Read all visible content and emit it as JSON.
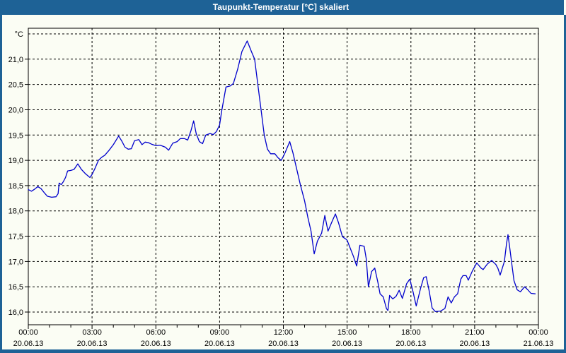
{
  "window": {
    "title": "Taupunkt-Temperatur [°C] skaliert"
  },
  "chart_data": {
    "type": "line",
    "title": "Taupunkt-Temperatur [°C] skaliert",
    "y_unit_label": "°C",
    "ylabel": "",
    "xlabel": "",
    "ylim": [
      15.75,
      21.61
    ],
    "xlim_hours": [
      0,
      24
    ],
    "grid": "dashed",
    "legend": "none",
    "line_color": "#0000CC",
    "grid_color": "#000000",
    "axis_color": "#000000",
    "background_color": "#FBFDF4",
    "titlebar_color": "#1E6296",
    "y_ticks": [
      {
        "value": 16.0,
        "label": "16,0"
      },
      {
        "value": 16.5,
        "label": "16,5"
      },
      {
        "value": 17.0,
        "label": "17,0"
      },
      {
        "value": 17.5,
        "label": "17,5"
      },
      {
        "value": 18.0,
        "label": "18,0"
      },
      {
        "value": 18.5,
        "label": "18,5"
      },
      {
        "value": 19.0,
        "label": "19,0"
      },
      {
        "value": 19.5,
        "label": "19,5"
      },
      {
        "value": 20.0,
        "label": "20,0"
      },
      {
        "value": 20.5,
        "label": "20,5"
      },
      {
        "value": 21.0,
        "label": "21,0"
      }
    ],
    "y_gridlines": [
      16.0,
      16.5,
      17.0,
      17.5,
      18.0,
      18.5,
      19.0,
      19.5,
      20.0,
      20.5,
      21.0,
      21.5
    ],
    "x_major_ticks": [
      {
        "hour": 0,
        "time": "00:00",
        "date": "20.06.13"
      },
      {
        "hour": 3,
        "time": "03:00",
        "date": "20.06.13"
      },
      {
        "hour": 6,
        "time": "06:00",
        "date": "20.06.13"
      },
      {
        "hour": 9,
        "time": "09:00",
        "date": "20.06.13"
      },
      {
        "hour": 12,
        "time": "12:00",
        "date": "20.06.13"
      },
      {
        "hour": 15,
        "time": "15:00",
        "date": "20.06.13"
      },
      {
        "hour": 18,
        "time": "18:00",
        "date": "20.06.13"
      },
      {
        "hour": 21,
        "time": "21:00",
        "date": "20.06.13"
      },
      {
        "hour": 24,
        "time": "00:00",
        "date": "21.06.13"
      }
    ],
    "x_gridline_hours": [
      3,
      6,
      9,
      12,
      15,
      18,
      21
    ],
    "x_minor_tick_every_hours": 1,
    "points": [
      [
        0.0,
        18.42
      ],
      [
        0.15,
        18.39
      ],
      [
        0.3,
        18.43
      ],
      [
        0.45,
        18.48
      ],
      [
        0.6,
        18.44
      ],
      [
        0.75,
        18.36
      ],
      [
        0.9,
        18.29
      ],
      [
        1.1,
        18.27
      ],
      [
        1.3,
        18.28
      ],
      [
        1.4,
        18.34
      ],
      [
        1.45,
        18.55
      ],
      [
        1.55,
        18.52
      ],
      [
        1.65,
        18.58
      ],
      [
        1.75,
        18.66
      ],
      [
        1.85,
        18.79
      ],
      [
        2.0,
        18.8
      ],
      [
        2.15,
        18.82
      ],
      [
        2.33,
        18.93
      ],
      [
        2.5,
        18.82
      ],
      [
        2.7,
        18.73
      ],
      [
        2.9,
        18.66
      ],
      [
        3.0,
        18.72
      ],
      [
        3.15,
        18.85
      ],
      [
        3.3,
        19.0
      ],
      [
        3.45,
        19.06
      ],
      [
        3.6,
        19.1
      ],
      [
        3.8,
        19.2
      ],
      [
        4.0,
        19.31
      ],
      [
        4.25,
        19.48
      ],
      [
        4.4,
        19.38
      ],
      [
        4.55,
        19.26
      ],
      [
        4.7,
        19.22
      ],
      [
        4.85,
        19.23
      ],
      [
        5.0,
        19.39
      ],
      [
        5.2,
        19.41
      ],
      [
        5.35,
        19.31
      ],
      [
        5.5,
        19.36
      ],
      [
        5.65,
        19.35
      ],
      [
        5.8,
        19.32
      ],
      [
        6.0,
        19.29
      ],
      [
        6.2,
        19.3
      ],
      [
        6.45,
        19.26
      ],
      [
        6.6,
        19.2
      ],
      [
        6.8,
        19.34
      ],
      [
        7.0,
        19.37
      ],
      [
        7.15,
        19.43
      ],
      [
        7.35,
        19.43
      ],
      [
        7.5,
        19.4
      ],
      [
        7.65,
        19.58
      ],
      [
        7.78,
        19.78
      ],
      [
        7.9,
        19.53
      ],
      [
        8.05,
        19.37
      ],
      [
        8.2,
        19.33
      ],
      [
        8.35,
        19.5
      ],
      [
        8.55,
        19.53
      ],
      [
        8.7,
        19.51
      ],
      [
        8.85,
        19.57
      ],
      [
        9.0,
        19.7
      ],
      [
        9.1,
        19.98
      ],
      [
        9.3,
        20.45
      ],
      [
        9.5,
        20.47
      ],
      [
        9.65,
        20.52
      ],
      [
        9.85,
        20.8
      ],
      [
        10.05,
        21.15
      ],
      [
        10.3,
        21.36
      ],
      [
        10.5,
        21.15
      ],
      [
        10.65,
        21.0
      ],
      [
        10.8,
        20.5
      ],
      [
        10.95,
        20.0
      ],
      [
        11.1,
        19.5
      ],
      [
        11.25,
        19.22
      ],
      [
        11.4,
        19.13
      ],
      [
        11.6,
        19.13
      ],
      [
        11.75,
        19.05
      ],
      [
        11.9,
        19.0
      ],
      [
        12.05,
        19.12
      ],
      [
        12.3,
        19.37
      ],
      [
        12.45,
        19.15
      ],
      [
        12.6,
        18.88
      ],
      [
        12.8,
        18.52
      ],
      [
        13.0,
        18.2
      ],
      [
        13.15,
        17.88
      ],
      [
        13.3,
        17.6
      ],
      [
        13.45,
        17.15
      ],
      [
        13.6,
        17.4
      ],
      [
        13.8,
        17.56
      ],
      [
        13.95,
        17.91
      ],
      [
        14.1,
        17.6
      ],
      [
        14.3,
        17.8
      ],
      [
        14.45,
        17.94
      ],
      [
        14.6,
        17.76
      ],
      [
        14.78,
        17.49
      ],
      [
        14.95,
        17.44
      ],
      [
        15.0,
        17.42
      ],
      [
        15.15,
        17.26
      ],
      [
        15.3,
        17.1
      ],
      [
        15.45,
        16.91
      ],
      [
        15.6,
        17.32
      ],
      [
        15.8,
        17.3
      ],
      [
        15.9,
        17.05
      ],
      [
        16.0,
        16.5
      ],
      [
        16.15,
        16.8
      ],
      [
        16.3,
        16.87
      ],
      [
        16.45,
        16.58
      ],
      [
        16.55,
        16.36
      ],
      [
        16.7,
        16.3
      ],
      [
        16.85,
        16.07
      ],
      [
        16.92,
        16.03
      ],
      [
        17.0,
        16.33
      ],
      [
        17.15,
        16.26
      ],
      [
        17.3,
        16.31
      ],
      [
        17.45,
        16.43
      ],
      [
        17.6,
        16.27
      ],
      [
        17.8,
        16.56
      ],
      [
        17.95,
        16.65
      ],
      [
        18.1,
        16.4
      ],
      [
        18.25,
        16.12
      ],
      [
        18.45,
        16.46
      ],
      [
        18.6,
        16.68
      ],
      [
        18.72,
        16.7
      ],
      [
        18.85,
        16.44
      ],
      [
        19.0,
        16.08
      ],
      [
        19.15,
        16.01
      ],
      [
        19.4,
        16.02
      ],
      [
        19.6,
        16.07
      ],
      [
        19.75,
        16.3
      ],
      [
        19.9,
        16.18
      ],
      [
        20.05,
        16.3
      ],
      [
        20.2,
        16.36
      ],
      [
        20.35,
        16.65
      ],
      [
        20.45,
        16.72
      ],
      [
        20.6,
        16.72
      ],
      [
        20.7,
        16.63
      ],
      [
        20.9,
        16.82
      ],
      [
        21.1,
        16.97
      ],
      [
        21.3,
        16.87
      ],
      [
        21.4,
        16.84
      ],
      [
        21.6,
        16.95
      ],
      [
        21.8,
        17.02
      ],
      [
        22.0,
        16.94
      ],
      [
        22.1,
        16.86
      ],
      [
        22.2,
        16.73
      ],
      [
        22.4,
        17.0
      ],
      [
        22.5,
        17.35
      ],
      [
        22.57,
        17.53
      ],
      [
        22.65,
        17.28
      ],
      [
        22.75,
        16.95
      ],
      [
        22.85,
        16.62
      ],
      [
        23.0,
        16.44
      ],
      [
        23.15,
        16.4
      ],
      [
        23.35,
        16.5
      ],
      [
        23.5,
        16.44
      ],
      [
        23.65,
        16.37
      ],
      [
        23.85,
        16.36
      ]
    ]
  }
}
